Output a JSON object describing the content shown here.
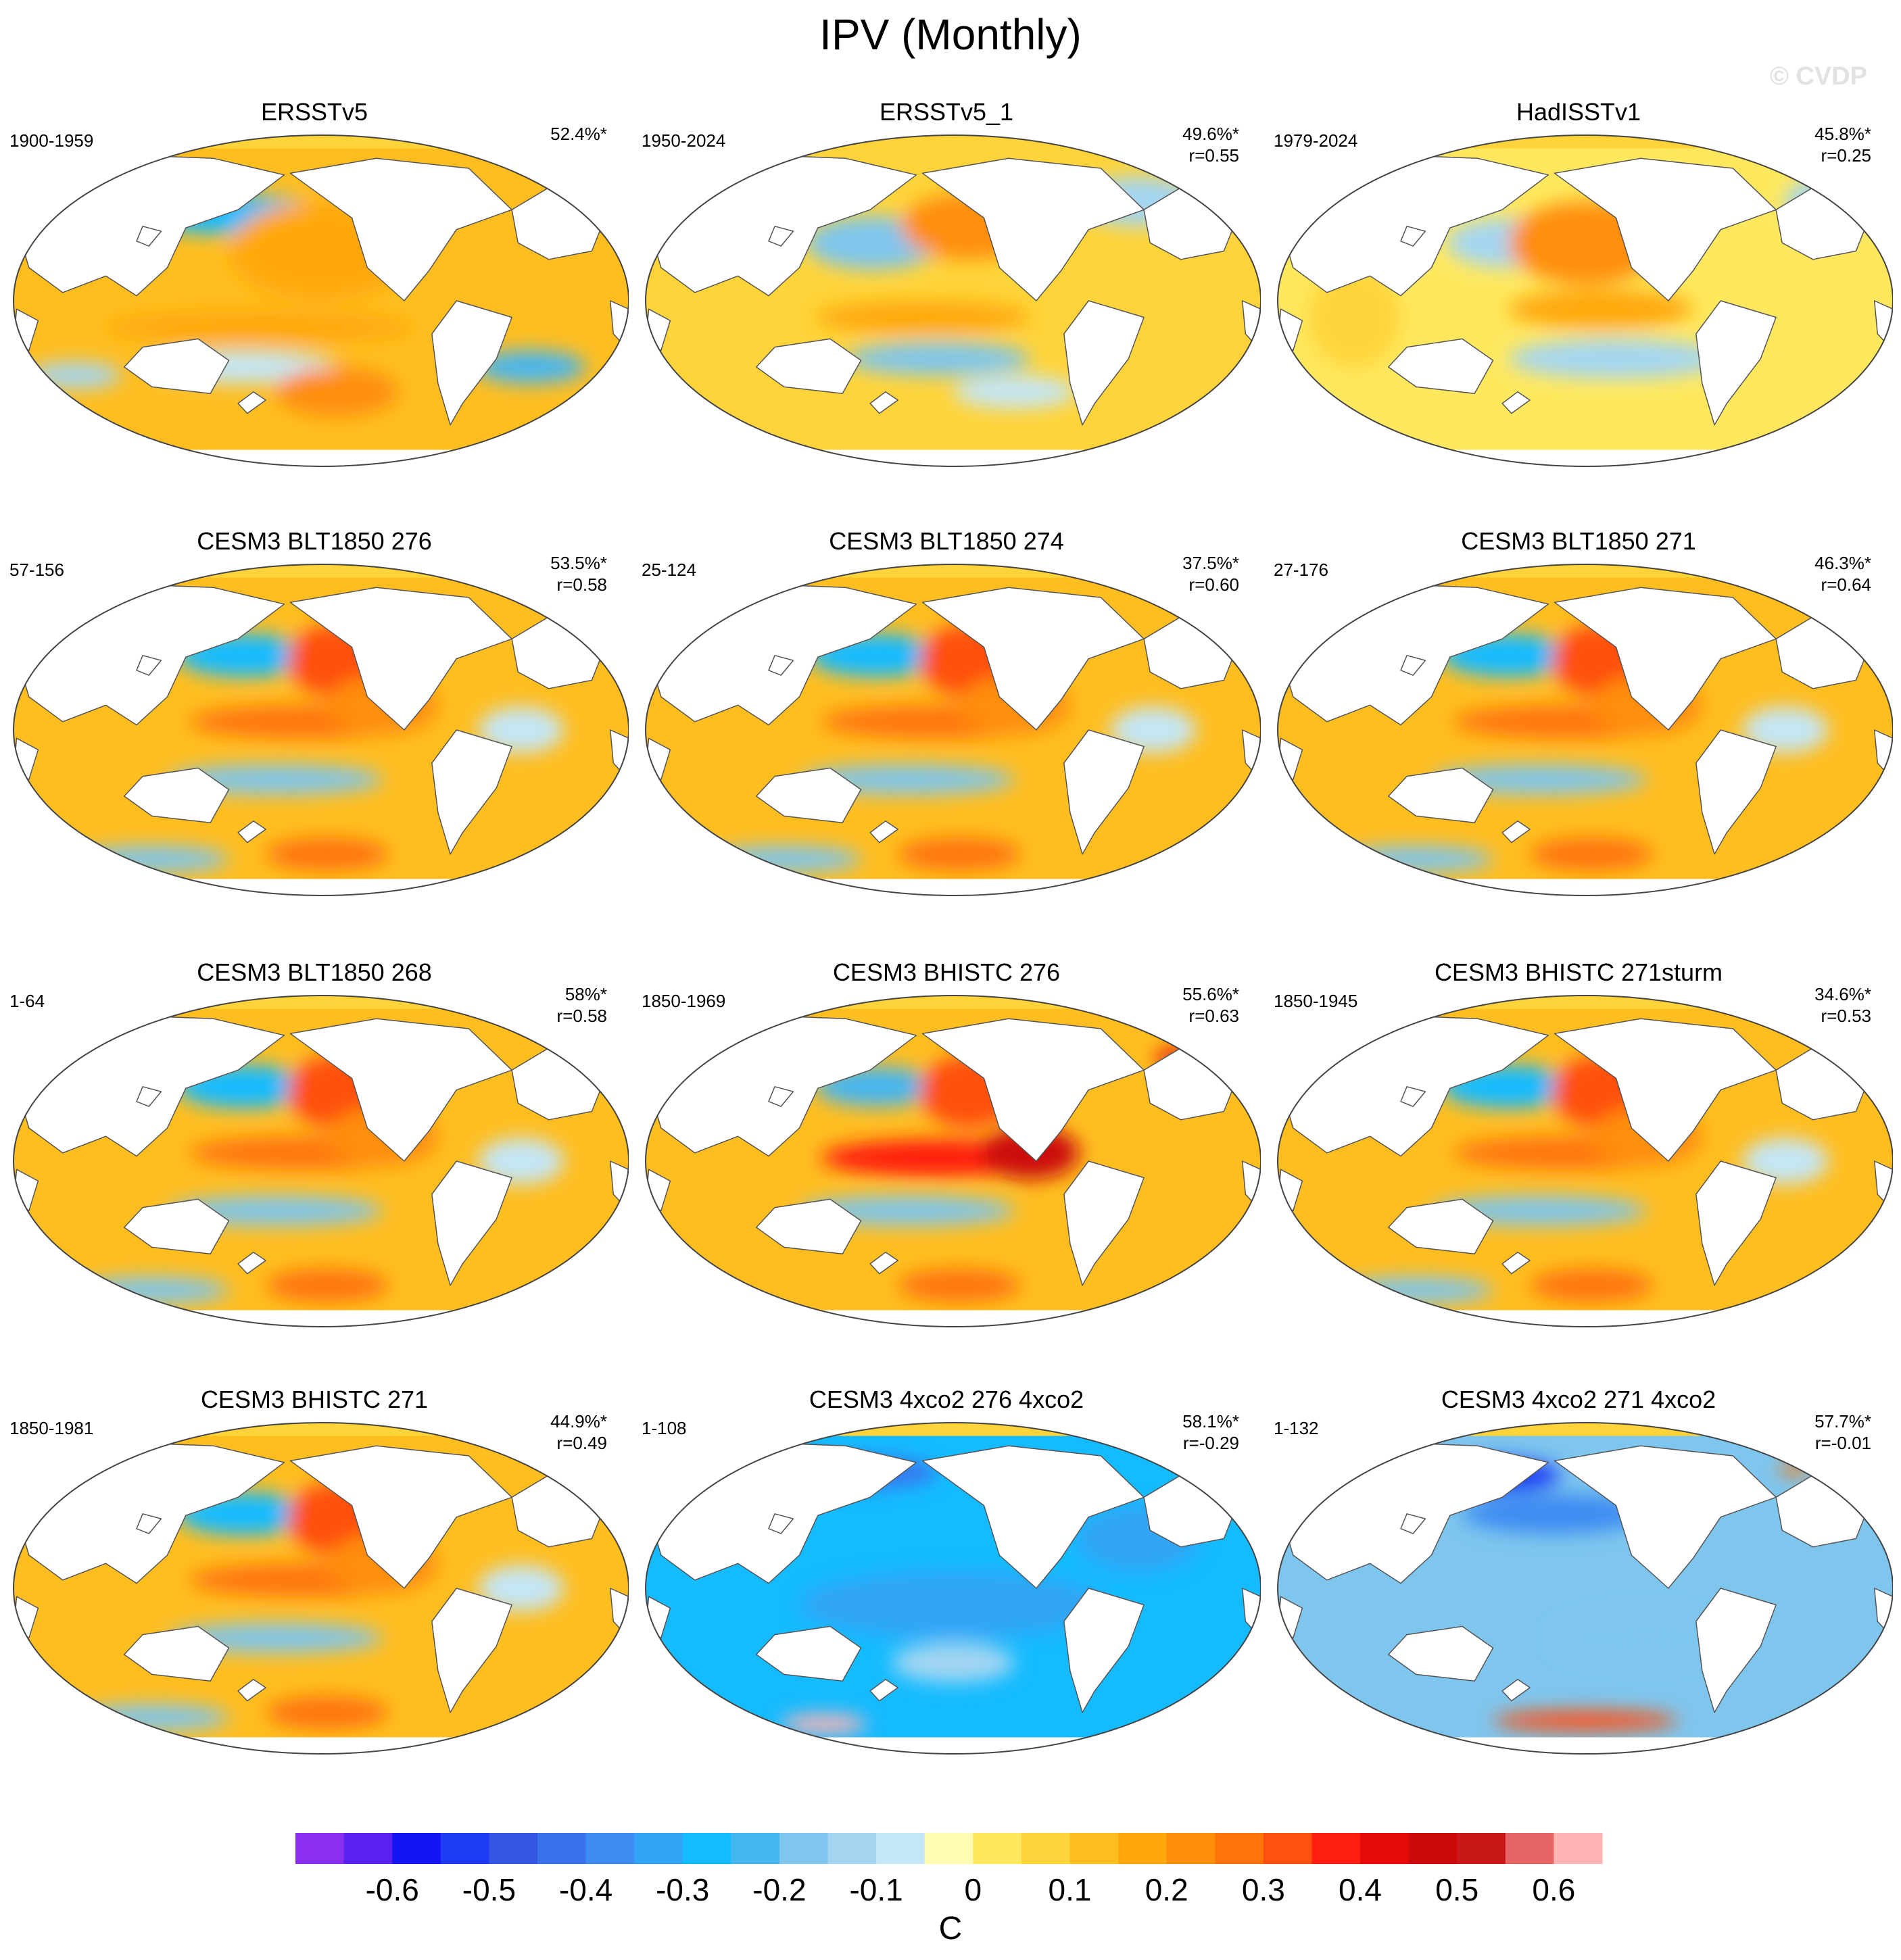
{
  "title": "IPV (Monthly)",
  "watermark": "© CVDP",
  "panels": [
    {
      "title": "ERSSTv5",
      "years": "1900-1959",
      "pct": "52.4%*",
      "r": "",
      "pattern": "obs1"
    },
    {
      "title": "ERSSTv5_1",
      "years": "1950-2024",
      "pct": "49.6%*",
      "r": "r=0.55",
      "pattern": "obs2"
    },
    {
      "title": "HadISSTv1",
      "years": "1979-2024",
      "pct": "45.8%*",
      "r": "r=0.25",
      "pattern": "obs3"
    },
    {
      "title": "CESM3 BLT1850 276",
      "years": "57-156",
      "pct": "53.5%*",
      "r": "r=0.58",
      "pattern": "model"
    },
    {
      "title": "CESM3 BLT1850 274",
      "years": "25-124",
      "pct": "37.5%*",
      "r": "r=0.60",
      "pattern": "model"
    },
    {
      "title": "CESM3 BLT1850 271",
      "years": "27-176",
      "pct": "46.3%*",
      "r": "r=0.64",
      "pattern": "model"
    },
    {
      "title": "CESM3 BLT1850 268",
      "years": "1-64",
      "pct": "58%*",
      "r": "r=0.58",
      "pattern": "model"
    },
    {
      "title": "CESM3 BHISTC 276",
      "years": "1850-1969",
      "pct": "55.6%*",
      "r": "r=0.63",
      "pattern": "model-strong"
    },
    {
      "title": "CESM3 BHISTC 271sturm",
      "years": "1850-1945",
      "pct": "34.6%*",
      "r": "r=0.53",
      "pattern": "model"
    },
    {
      "title": "CESM3 BHISTC 271",
      "years": "1850-1981",
      "pct": "44.9%*",
      "r": "r=0.49",
      "pattern": "model"
    },
    {
      "title": "CESM3 4xco2 276 4xco2",
      "years": "1-108",
      "pct": "58.1%*",
      "r": "r=-0.29",
      "pattern": "cold"
    },
    {
      "title": "CESM3 4xco2 271 4xco2",
      "years": "1-132",
      "pct": "57.7%*",
      "r": "r=-0.01",
      "pattern": "cold2"
    }
  ],
  "colorbar": {
    "unit": "C",
    "tick_labels": [
      "-0.6",
      "-0.5",
      "-0.4",
      "-0.3",
      "-0.2",
      "-0.1",
      "0",
      "0.1",
      "0.2",
      "0.3",
      "0.4",
      "0.5",
      "0.6"
    ],
    "colors": [
      "#8a2ff0",
      "#5a22f0",
      "#1414f5",
      "#1e3cf5",
      "#3456e0",
      "#3a72ec",
      "#3c8cf2",
      "#30a4f5",
      "#14bbff",
      "#46b6f0",
      "#7ec6ee",
      "#a4d6f2",
      "#c4e6f6",
      "#fffcb2",
      "#ffe85e",
      "#ffd43a",
      "#ffbe20",
      "#ffa80c",
      "#ff8e08",
      "#ff7408",
      "#ff5010",
      "#ff1e10",
      "#e60a0a",
      "#cc0a0a",
      "#c81818",
      "#e66464",
      "#ffb4b4"
    ]
  }
}
